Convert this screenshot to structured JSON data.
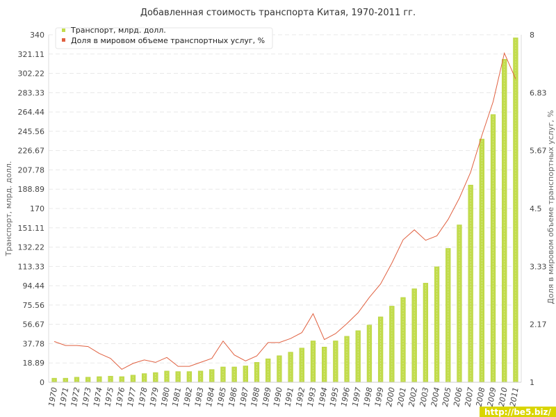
{
  "chart_data": {
    "type": "bar",
    "title": "Добавленная стоимость транспорта Китая, 1970-2011 гг.",
    "ylabel": "Транспорт, млрд. долл.",
    "y2label": "Доля в мировом объеме транспортных услуг, %",
    "ylim": [
      0,
      340
    ],
    "y2lim": [
      1,
      8
    ],
    "yticks": [
      "0",
      "18.89",
      "37.78",
      "56.67",
      "75.56",
      "94.44",
      "113.33",
      "132.22",
      "151.11",
      "170",
      "188.89",
      "207.78",
      "226.67",
      "245.56",
      "264.44",
      "283.33",
      "302.22",
      "321.11",
      "340"
    ],
    "y2ticks": [
      "1",
      "2.17",
      "3.33",
      "4.5",
      "5.67",
      "6.83",
      "8"
    ],
    "grid": true,
    "legend_position": "top-left",
    "categories": [
      "1970",
      "1971",
      "1972",
      "1973",
      "1974",
      "1975",
      "1976",
      "1977",
      "1978",
      "1979",
      "1980",
      "1981",
      "1982",
      "1983",
      "1984",
      "1985",
      "1986",
      "1987",
      "1988",
      "1989",
      "1990",
      "1991",
      "1992",
      "1993",
      "1994",
      "1995",
      "1996",
      "1997",
      "1998",
      "1999",
      "2000",
      "2001",
      "2002",
      "2003",
      "2004",
      "2005",
      "2006",
      "2007",
      "2008",
      "2009",
      "2010",
      "2011"
    ],
    "series": [
      {
        "name": "Транспорт, млрд. долл.",
        "type": "bar",
        "axis": "left",
        "color": "#c2dc4c",
        "values": [
          4,
          4,
          5,
          5,
          5.5,
          6,
          5.5,
          7,
          8.5,
          9.5,
          11,
          10.5,
          10.5,
          11,
          12.5,
          15,
          15,
          16,
          19.5,
          23,
          26,
          29.5,
          33.5,
          40.5,
          34.5,
          40.5,
          45,
          50.5,
          56,
          64,
          74.5,
          83,
          91.5,
          97,
          113,
          131,
          154,
          193,
          238,
          262,
          316,
          337
        ]
      },
      {
        "name": "Доля в мировом объеме транспортных услуг, %",
        "type": "line",
        "axis": "right",
        "color": "#e06040",
        "values": [
          1.82,
          1.74,
          1.74,
          1.72,
          1.58,
          1.48,
          1.26,
          1.38,
          1.45,
          1.4,
          1.5,
          1.32,
          1.32,
          1.4,
          1.48,
          1.83,
          1.55,
          1.43,
          1.53,
          1.8,
          1.8,
          1.88,
          2.0,
          2.38,
          1.86,
          1.98,
          2.18,
          2.4,
          2.71,
          2.98,
          3.4,
          3.87,
          4.07,
          3.86,
          3.95,
          4.28,
          4.71,
          5.23,
          5.97,
          6.65,
          7.63,
          7.11
        ]
      }
    ]
  },
  "watermark": "http://be5.biz/"
}
